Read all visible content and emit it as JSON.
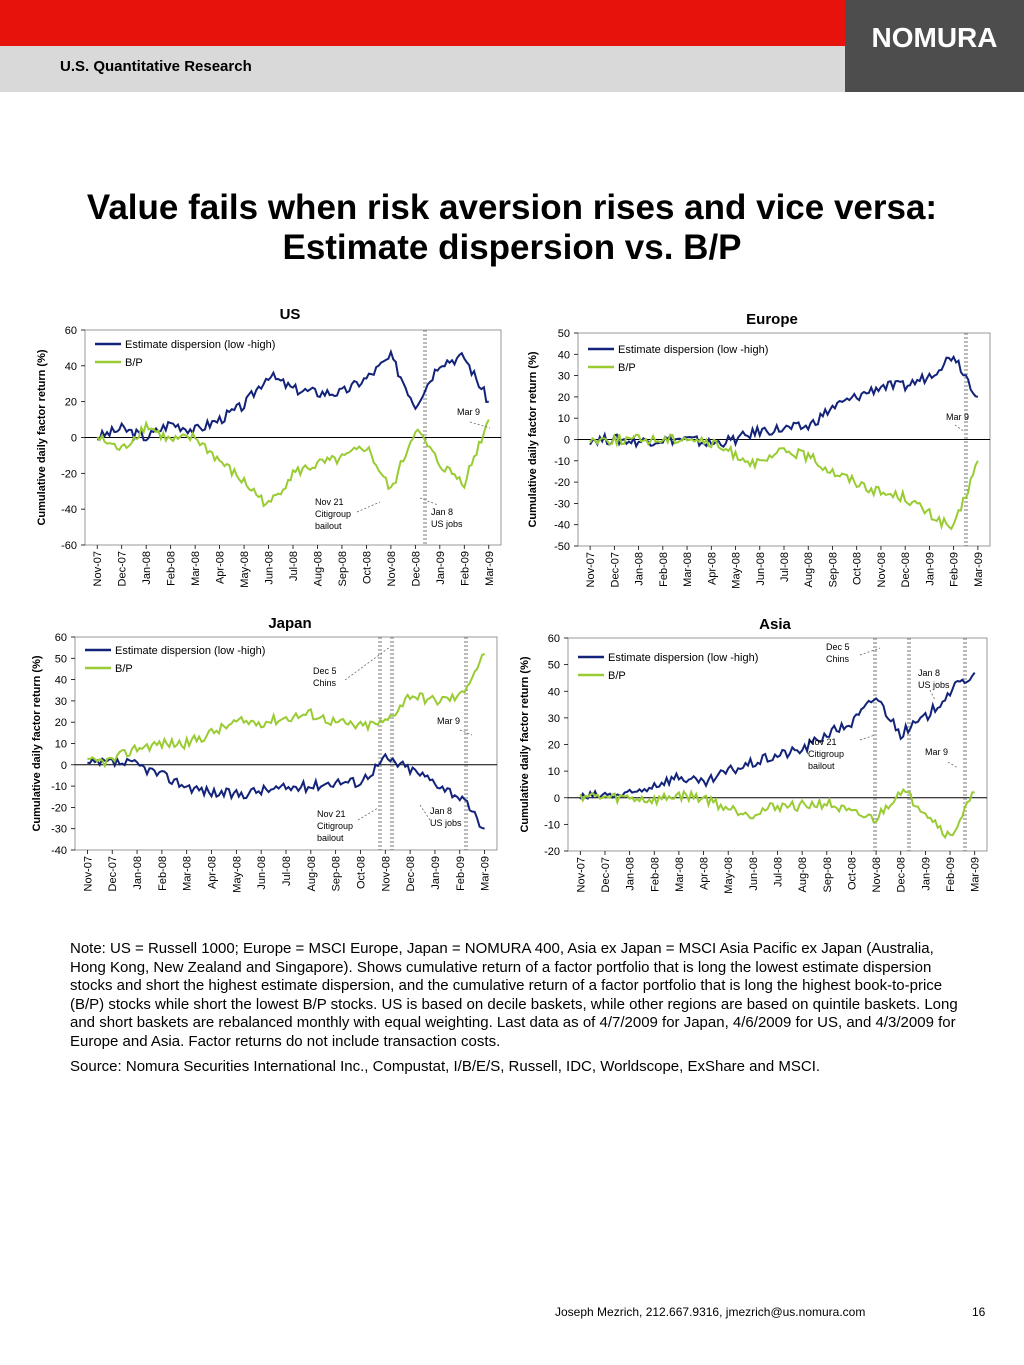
{
  "header": {
    "section": "U.S. Quantitative Research",
    "brand": "NOMURA",
    "colors": {
      "red": "#e8120c",
      "grey": "#d9d9d9",
      "logo_bg": "#4d4d4d"
    }
  },
  "title_line1": "Value fails when risk aversion rises and vice versa:",
  "title_line2": "Estimate dispersion vs. B/P",
  "series_colors": {
    "Estimate dispersion (low -high)": "#13237a",
    "B/P": "#99cc33"
  },
  "x_tick_labels": [
    "Nov-07",
    "Dec-07",
    "Jan-08",
    "Feb-08",
    "Mar-08",
    "Apr-08",
    "May-08",
    "Jun-08",
    "Jul-08",
    "Aug-08",
    "Sep-08",
    "Oct-08",
    "Nov-08",
    "Dec-08",
    "Jan-09",
    "Feb-09",
    "Mar-09"
  ],
  "chart_data": [
    {
      "type": "line",
      "title": "US",
      "ylabel": "Cumulative daily factor return (%)",
      "ylim": [
        -60,
        60
      ],
      "yticks": [
        -60,
        -40,
        -20,
        0,
        20,
        40,
        60
      ],
      "x": [
        "Nov-07",
        "Dec-07",
        "Jan-08",
        "Feb-08",
        "Mar-08",
        "Apr-08",
        "May-08",
        "Jun-08",
        "Jul-08",
        "Aug-08",
        "Sep-08",
        "Oct-08",
        "Nov-08",
        "Dec-08",
        "Jan-09",
        "Feb-09",
        "Mar-09"
      ],
      "legend_position": "top-left",
      "series": [
        {
          "name": "Estimate dispersion (low -high)",
          "values": [
            0,
            5,
            0,
            8,
            4,
            10,
            18,
            35,
            27,
            25,
            25,
            33,
            45,
            18,
            42,
            45,
            20
          ]
        },
        {
          "name": "B/P",
          "values": [
            0,
            -7,
            7,
            -2,
            0,
            -13,
            -25,
            -38,
            -20,
            -15,
            -12,
            -5,
            -30,
            5,
            -15,
            -25,
            10
          ]
        }
      ],
      "annotations": [
        "Mar 9",
        "Nov 21 Citigroup bailout",
        "Jan 8 US jobs"
      ]
    },
    {
      "type": "line",
      "title": "Europe",
      "ylabel": "Cumulative daily factor return (%)",
      "ylim": [
        -50,
        50
      ],
      "yticks": [
        -50,
        -40,
        -30,
        -20,
        -10,
        0,
        10,
        20,
        30,
        40,
        50
      ],
      "x": [
        "Nov-07",
        "Dec-07",
        "Jan-08",
        "Feb-08",
        "Mar-08",
        "Apr-08",
        "May-08",
        "Jun-08",
        "Jul-08",
        "Aug-08",
        "Sep-08",
        "Oct-08",
        "Nov-08",
        "Dec-08",
        "Jan-09",
        "Feb-09",
        "Mar-09"
      ],
      "legend_position": "top-left",
      "series": [
        {
          "name": "Estimate dispersion (low -high)",
          "values": [
            0,
            0,
            -1,
            0,
            0,
            -2,
            0,
            4,
            5,
            6,
            15,
            20,
            25,
            25,
            30,
            40,
            20
          ]
        },
        {
          "name": "B/P",
          "values": [
            0,
            0,
            0,
            0,
            1,
            -2,
            -7,
            -12,
            -5,
            -8,
            -15,
            -20,
            -25,
            -27,
            -35,
            -42,
            -10
          ]
        }
      ],
      "annotations": [
        "Mar 9"
      ]
    },
    {
      "type": "line",
      "title": "Japan",
      "ylabel": "Cumulative daily factor return (%)",
      "ylim": [
        -40,
        60
      ],
      "yticks": [
        -40,
        -30,
        -20,
        -10,
        0,
        10,
        20,
        30,
        40,
        50,
        60
      ],
      "x": [
        "Nov-07",
        "Dec-07",
        "Jan-08",
        "Feb-08",
        "Mar-08",
        "Apr-08",
        "May-08",
        "Jun-08",
        "Jul-08",
        "Aug-08",
        "Sep-08",
        "Oct-08",
        "Nov-08",
        "Dec-08",
        "Jan-09",
        "Feb-09",
        "Mar-09"
      ],
      "legend_position": "top-left",
      "series": [
        {
          "name": "Estimate dispersion (low -high)",
          "values": [
            0,
            1,
            0,
            -5,
            -10,
            -13,
            -14,
            -12,
            -11,
            -10,
            -8,
            -8,
            3,
            -2,
            -8,
            -15,
            -30
          ]
        },
        {
          "name": "B/P",
          "values": [
            1,
            2,
            8,
            10,
            10,
            15,
            20,
            20,
            22,
            24,
            20,
            18,
            20,
            33,
            30,
            32,
            52
          ]
        }
      ],
      "annotations": [
        "Dec 5 Chins",
        "Mar 9",
        "Nov 21 Citigroup bailout",
        "Jan 8 US jobs"
      ]
    },
    {
      "type": "line",
      "title": "Asia",
      "ylabel": "Cumulative daily factor return (%)",
      "ylim": [
        -20,
        60
      ],
      "yticks": [
        -20,
        -10,
        0,
        10,
        20,
        30,
        40,
        50,
        60
      ],
      "x": [
        "Nov-07",
        "Dec-07",
        "Jan-08",
        "Feb-08",
        "Mar-08",
        "Apr-08",
        "May-08",
        "Jun-08",
        "Jul-08",
        "Aug-08",
        "Sep-08",
        "Oct-08",
        "Nov-08",
        "Dec-08",
        "Jan-09",
        "Feb-09",
        "Mar-09"
      ],
      "legend_position": "top-left",
      "series": [
        {
          "name": "Estimate dispersion (low -high)",
          "values": [
            0,
            1,
            1,
            5,
            8,
            5,
            10,
            13,
            16,
            18,
            24,
            28,
            38,
            24,
            30,
            40,
            47
          ]
        },
        {
          "name": "B/P",
          "values": [
            1,
            0,
            0,
            -1,
            1,
            0,
            -4,
            -6,
            -3,
            -3,
            -2,
            -6,
            -8,
            3,
            -5,
            -15,
            2
          ]
        }
      ],
      "annotations": [
        "Dec 5 Chins",
        "Jan 8 US jobs",
        "Nov 21 Citigroup bailout",
        "Mar 9"
      ]
    }
  ],
  "note": "Note: US = Russell 1000; Europe = MSCI Europe, Japan = NOMURA 400, Asia ex Japan = MSCI Asia Pacific ex Japan (Australia, Hong Kong, New Zealand and Singapore). Shows cumulative return of a factor portfolio that is long the lowest estimate dispersion stocks and short the highest estimate dispersion, and the cumulative return of a factor portfolio that is long the highest book-to-price (B/P) stocks while short the lowest B/P stocks. US is based on decile baskets, while other regions are based on quintile baskets. Long and short baskets are rebalanced monthly with equal weighting. Last data as of 4/7/2009 for Japan, 4/6/2009 for US, and 4/3/2009 for Europe and Asia. Factor returns do not include transaction costs.",
  "source": "Source: Nomura Securities International Inc., Compustat, I/B/E/S, Russell, IDC, Worldscope, ExShare and MSCI.",
  "footer": {
    "contact": "Joseph Mezrich, 212.667.9316, jmezrich@us.nomura.com",
    "page": "16"
  }
}
